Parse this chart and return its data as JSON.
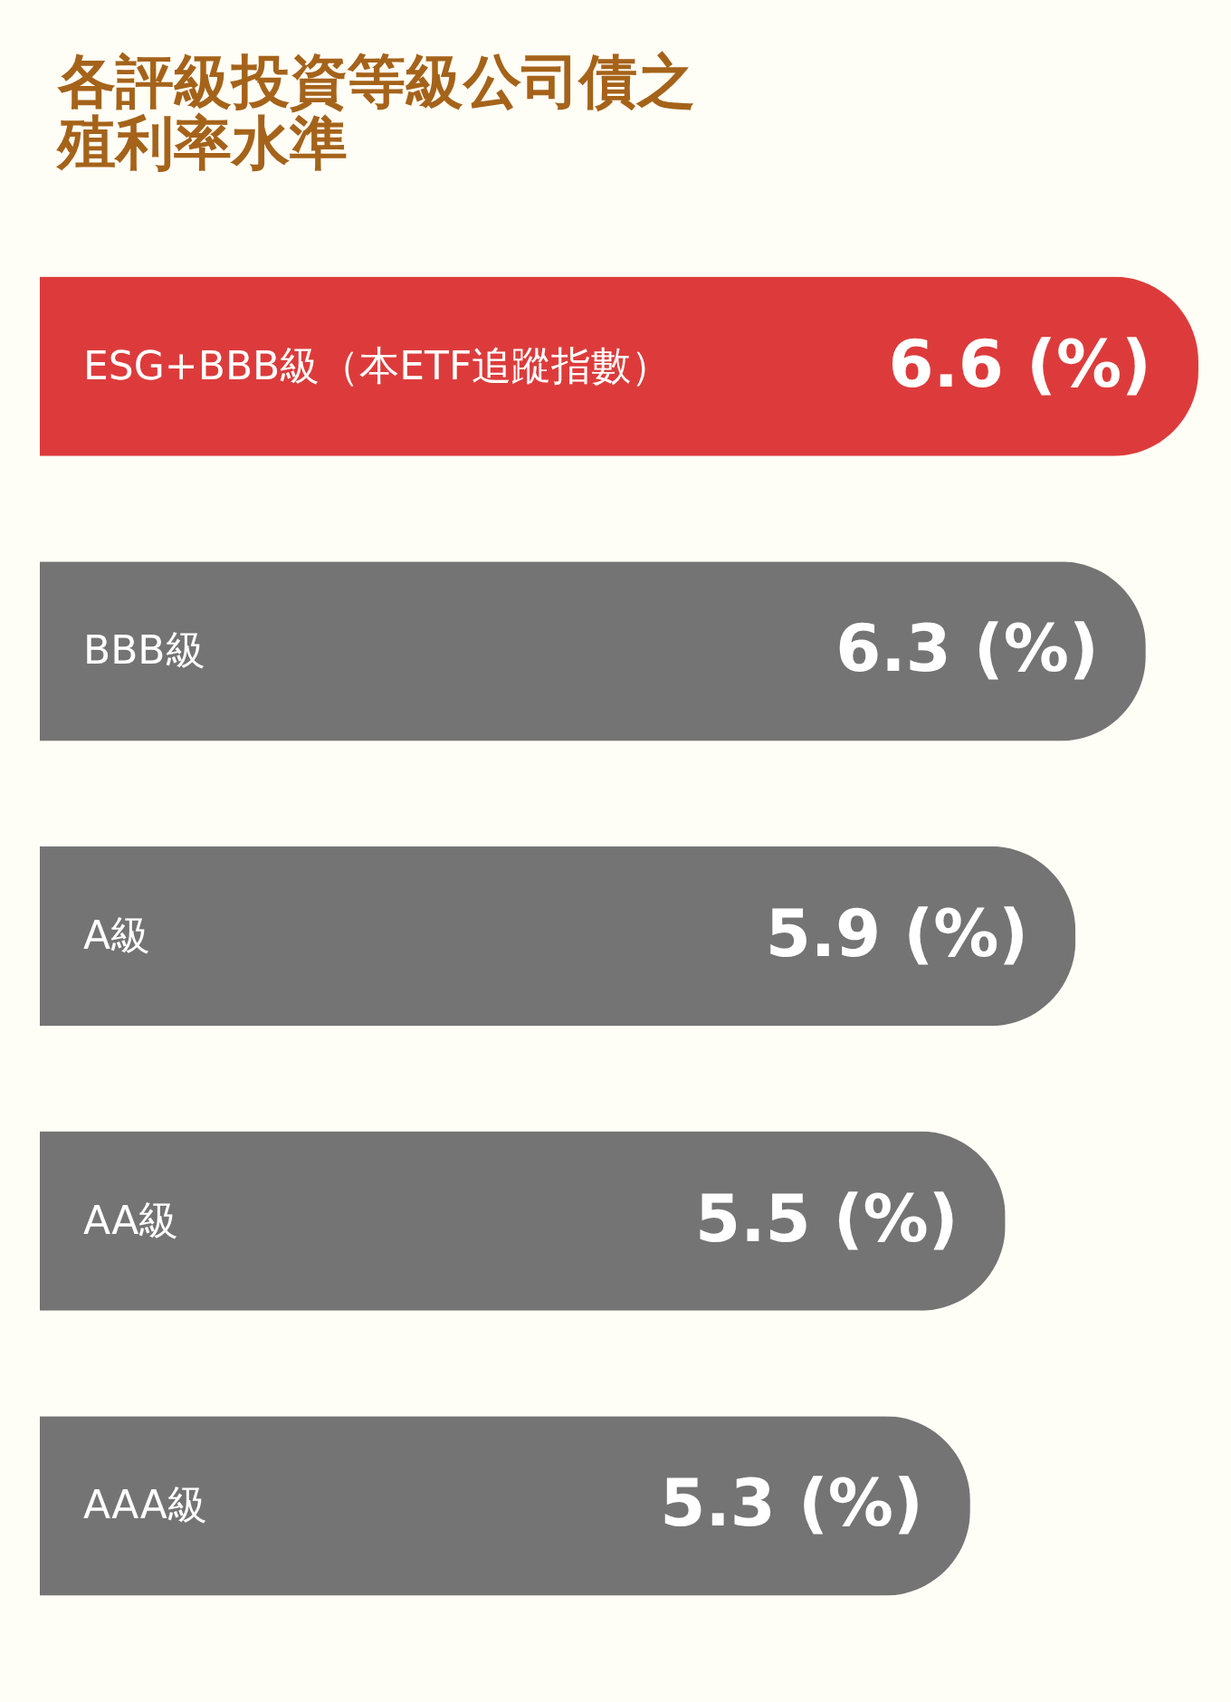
{
  "chart_data": {
    "type": "bar",
    "orientation": "horizontal",
    "title": "各評級投資等級公司債之殖利率水準",
    "categories": [
      "ESG+BBB級（本ETF追蹤指數）",
      "BBB級",
      "A級",
      "AA級",
      "AAA級"
    ],
    "values": [
      6.6,
      6.3,
      5.9,
      5.5,
      5.3
    ],
    "colors": [
      "#dd3b3b",
      "#747474",
      "#747474",
      "#747474",
      "#747474"
    ],
    "value_labels": [
      "6.6 (%)",
      "6.3 (%)",
      "5.9 (%)",
      "5.5 (%)",
      "5.3 (%)"
    ],
    "xlim": [
      0,
      6.6
    ]
  }
}
